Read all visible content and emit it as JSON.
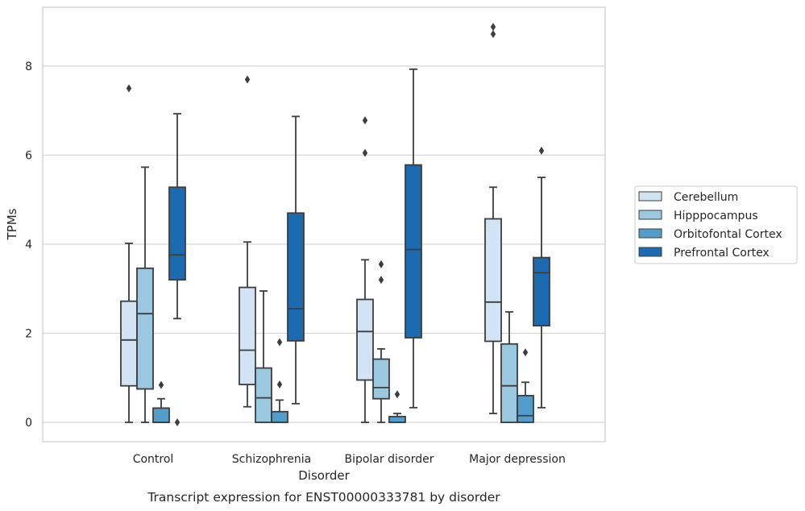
{
  "chart_data": {
    "type": "box",
    "title": "",
    "caption": "Transcript expression for ENST00000333781 by disorder",
    "xlabel": "Disorder",
    "ylabel": "TPMs",
    "ylim": [
      -0.4,
      9.3
    ],
    "yticks": [
      0,
      2,
      4,
      6,
      8
    ],
    "grid": "horizontal",
    "legend_position": "right",
    "categories": [
      "Control",
      "Schizophrenia",
      "Bipolar disorder",
      "Major depression"
    ],
    "series": [
      {
        "name": "Cerebellum",
        "color": "#d2e3f3",
        "boxes": [
          {
            "whislo": 0.0,
            "q1": 0.82,
            "med": 1.85,
            "q3": 2.72,
            "whishi": 4.02,
            "fliers": [
              7.5
            ]
          },
          {
            "whislo": 0.35,
            "q1": 0.85,
            "med": 1.62,
            "q3": 3.03,
            "whishi": 4.05,
            "fliers": [
              7.7
            ]
          },
          {
            "whislo": 0.0,
            "q1": 0.95,
            "med": 2.04,
            "q3": 2.76,
            "whishi": 3.65,
            "fliers": [
              6.05,
              6.78
            ]
          },
          {
            "whislo": 0.2,
            "q1": 1.82,
            "med": 2.7,
            "q3": 4.57,
            "whishi": 5.28,
            "fliers": [
              8.72,
              8.88
            ]
          }
        ]
      },
      {
        "name": "Hipppocampus",
        "color": "#9ac8e0",
        "boxes": [
          {
            "whislo": 0.0,
            "q1": 0.75,
            "med": 2.44,
            "q3": 3.46,
            "whishi": 5.73,
            "fliers": []
          },
          {
            "whislo": 0.0,
            "q1": 0.0,
            "med": 0.55,
            "q3": 1.22,
            "whishi": 2.95,
            "fliers": []
          },
          {
            "whislo": 0.0,
            "q1": 0.53,
            "med": 0.78,
            "q3": 1.42,
            "whishi": 1.65,
            "fliers": [
              3.2,
              3.55
            ]
          },
          {
            "whislo": 0.0,
            "q1": 0.0,
            "med": 0.82,
            "q3": 1.76,
            "whishi": 2.48,
            "fliers": []
          }
        ]
      },
      {
        "name": "Orbitofontal Cortex",
        "color": "#529dcc",
        "boxes": [
          {
            "whislo": 0.0,
            "q1": 0.0,
            "med": 0.0,
            "q3": 0.32,
            "whishi": 0.53,
            "fliers": [
              0.84
            ]
          },
          {
            "whislo": 0.0,
            "q1": 0.0,
            "med": 0.0,
            "q3": 0.24,
            "whishi": 0.5,
            "fliers": [
              0.85,
              1.8
            ]
          },
          {
            "whislo": 0.0,
            "q1": 0.0,
            "med": 0.0,
            "q3": 0.13,
            "whishi": 0.2,
            "fliers": [
              0.63
            ]
          },
          {
            "whislo": 0.0,
            "q1": 0.0,
            "med": 0.15,
            "q3": 0.6,
            "whishi": 0.9,
            "fliers": [
              1.57
            ]
          }
        ]
      },
      {
        "name": "Prefrontal Cortex",
        "color": "#1c6aaf",
        "boxes": [
          {
            "whislo": 2.33,
            "q1": 3.2,
            "med": 3.76,
            "q3": 5.28,
            "whishi": 6.93,
            "fliers": [
              0.0
            ]
          },
          {
            "whislo": 0.42,
            "q1": 1.83,
            "med": 2.55,
            "q3": 4.7,
            "whishi": 6.87,
            "fliers": []
          },
          {
            "whislo": 0.33,
            "q1": 1.9,
            "med": 3.88,
            "q3": 5.78,
            "whishi": 7.93,
            "fliers": []
          },
          {
            "whislo": 0.33,
            "q1": 2.17,
            "med": 3.36,
            "q3": 3.7,
            "whishi": 5.5,
            "fliers": [
              6.1
            ]
          }
        ]
      }
    ]
  }
}
